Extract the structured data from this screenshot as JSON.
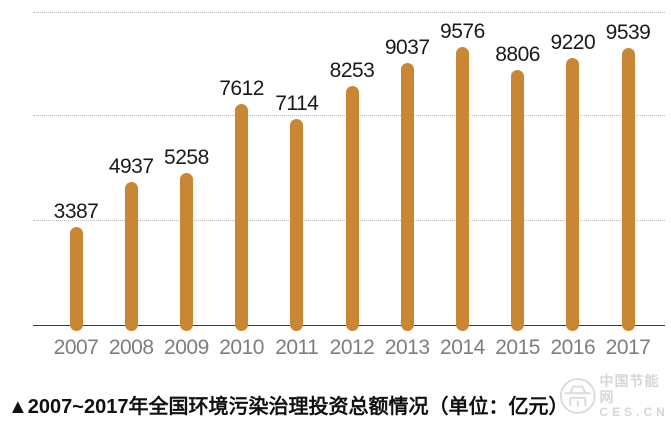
{
  "chart_data": {
    "type": "bar",
    "title": "▲2007~2017年全国环境污染治理投资总额情况（单位：亿元）",
    "categories": [
      "2007",
      "2008",
      "2009",
      "2010",
      "2011",
      "2012",
      "2013",
      "2014",
      "2015",
      "2016",
      "2017"
    ],
    "values": [
      3387,
      4937,
      5258,
      7612,
      7114,
      8253,
      9037,
      9576,
      8806,
      9220,
      9539
    ],
    "unit": "亿元",
    "xlabel": "",
    "ylabel": "",
    "ylim": [
      0,
      11200
    ],
    "grid": "horizontal-dotted",
    "gridline_labels_visible": false,
    "legend_position": "none",
    "value_labels_visible": true
  },
  "caption": {
    "text": "▲2007~2017年全国环境污染治理投资总额情况（单位：亿元）"
  },
  "watermark": {
    "line1": "中国节能网",
    "line2": "CES.CN",
    "logo": "ces-circle-logo"
  },
  "colors": {
    "bar": "#C98634",
    "value_label": "#1a1a1a",
    "year_label": "#7e7e7e",
    "caption": "#111111",
    "axis": "#3a3a3a",
    "gridline": "#bcbcbc",
    "watermark": "#cfcfcf",
    "background": "#ffffff"
  }
}
